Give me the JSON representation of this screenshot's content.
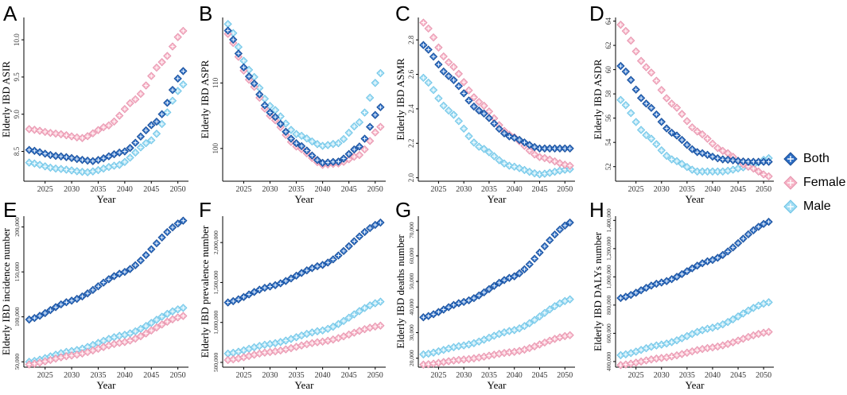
{
  "colors": {
    "both": "#2e6fc4",
    "female": "#f7b6c8",
    "male": "#9fdcf3",
    "axis": "#000000"
  },
  "legend": [
    {
      "key": "both",
      "label": "Both"
    },
    {
      "key": "female",
      "label": "Female"
    },
    {
      "key": "male",
      "label": "Male"
    }
  ],
  "chart_data": [
    {
      "type": "scatter",
      "panel": "A",
      "title": "",
      "xlabel": "Year",
      "ylabel": "Elderly IBD ASIR",
      "x_range": [
        2022,
        2051
      ],
      "xlim": [
        2021,
        2052
      ],
      "xticks": [
        2025,
        2030,
        2035,
        2040,
        2045,
        2050
      ],
      "xtick_labels": [
        "2025",
        "2030",
        "2035",
        "2040",
        "2045",
        "2050"
      ],
      "ylim": [
        8.1,
        10.3
      ],
      "yticks": [
        8.5,
        9.0,
        9.5,
        10.0
      ],
      "ytick_labels": [
        "8.5",
        "9.0",
        "9.5",
        "10.0"
      ],
      "series": [
        {
          "name": "Both",
          "key": "both",
          "anchors": [
            [
              2022,
              8.52
            ],
            [
              2027,
              8.44
            ],
            [
              2034,
              8.37
            ],
            [
              2040,
              8.5
            ],
            [
              2046,
              8.9
            ],
            [
              2051,
              9.58
            ]
          ]
        },
        {
          "name": "Female",
          "key": "female",
          "anchors": [
            [
              2022,
              8.8
            ],
            [
              2027,
              8.74
            ],
            [
              2032,
              8.68
            ],
            [
              2037,
              8.85
            ],
            [
              2042,
              9.2
            ],
            [
              2047,
              9.7
            ],
            [
              2051,
              10.12
            ]
          ]
        },
        {
          "name": "Male",
          "key": "male",
          "anchors": [
            [
              2022,
              8.35
            ],
            [
              2027,
              8.27
            ],
            [
              2033,
              8.22
            ],
            [
              2039,
              8.32
            ],
            [
              2045,
              8.65
            ],
            [
              2051,
              9.4
            ]
          ]
        }
      ]
    },
    {
      "type": "scatter",
      "panel": "B",
      "title": "",
      "xlabel": "Year",
      "ylabel": "Elderly IBD ASPR",
      "x_range": [
        2022,
        2051
      ],
      "xlim": [
        2021,
        2052
      ],
      "xticks": [
        2025,
        2030,
        2035,
        2040,
        2045,
        2050
      ],
      "xtick_labels": [
        "2025",
        "2030",
        "2035",
        "2040",
        "2045",
        "2050"
      ],
      "ylim": [
        95,
        120
      ],
      "yticks": [
        100,
        110
      ],
      "ytick_labels": [
        "100",
        "110"
      ],
      "series": [
        {
          "name": "Both",
          "key": "both",
          "anchors": [
            [
              2022,
              118.0
            ],
            [
              2026,
              111.0
            ],
            [
              2030,
              105.5
            ],
            [
              2035,
              100.8
            ],
            [
              2040,
              97.8
            ],
            [
              2043,
              98.0
            ],
            [
              2047,
              100.3
            ],
            [
              2051,
              106.3
            ]
          ]
        },
        {
          "name": "Female",
          "key": "female",
          "anchors": [
            [
              2022,
              117.5
            ],
            [
              2026,
              110.5
            ],
            [
              2030,
              105.0
            ],
            [
              2035,
              100.3
            ],
            [
              2040,
              97.5
            ],
            [
              2043,
              97.7
            ],
            [
              2047,
              99.0
            ],
            [
              2051,
              103.3
            ]
          ]
        },
        {
          "name": "Male",
          "key": "male",
          "anchors": [
            [
              2022,
              119.0
            ],
            [
              2026,
              112.0
            ],
            [
              2030,
              106.5
            ],
            [
              2035,
              102.2
            ],
            [
              2040,
              100.4
            ],
            [
              2043,
              100.8
            ],
            [
              2047,
              104.0
            ],
            [
              2051,
              111.5
            ]
          ]
        }
      ]
    },
    {
      "type": "scatter",
      "panel": "C",
      "title": "",
      "xlabel": "Year",
      "ylabel": "Elderly IBD ASMR",
      "x_range": [
        2022,
        2051
      ],
      "xlim": [
        2021,
        2052
      ],
      "xticks": [
        2025,
        2030,
        2035,
        2040,
        2045,
        2050
      ],
      "xtick_labels": [
        "2025",
        "2030",
        "2035",
        "2040",
        "2045",
        "2050"
      ],
      "ylim": [
        1.98,
        2.93
      ],
      "yticks": [
        2.0,
        2.2,
        2.4,
        2.6,
        2.8
      ],
      "ytick_labels": [
        "2.0",
        "2.2",
        "2.4",
        "2.6",
        "2.8"
      ],
      "series": [
        {
          "name": "Both",
          "key": "both",
          "anchors": [
            [
              2022,
              2.77
            ],
            [
              2027,
              2.59
            ],
            [
              2033,
              2.39
            ],
            [
              2039,
              2.24
            ],
            [
              2045,
              2.17
            ],
            [
              2051,
              2.17
            ]
          ]
        },
        {
          "name": "Female",
          "key": "female",
          "anchors": [
            [
              2022,
              2.9
            ],
            [
              2027,
              2.67
            ],
            [
              2033,
              2.44
            ],
            [
              2039,
              2.25
            ],
            [
              2045,
              2.12
            ],
            [
              2051,
              2.07
            ]
          ]
        },
        {
          "name": "Male",
          "key": "male",
          "anchors": [
            [
              2022,
              2.58
            ],
            [
              2027,
              2.39
            ],
            [
              2033,
              2.18
            ],
            [
              2039,
              2.07
            ],
            [
              2045,
              2.02
            ],
            [
              2051,
              2.05
            ]
          ]
        }
      ]
    },
    {
      "type": "scatter",
      "panel": "D",
      "title": "",
      "xlabel": "Year",
      "ylabel": "Elderly IBD ASDR",
      "x_range": [
        2022,
        2051
      ],
      "xlim": [
        2021,
        2052
      ],
      "xticks": [
        2025,
        2030,
        2035,
        2040,
        2045,
        2050
      ],
      "xtick_labels": [
        "2025",
        "2030",
        "2035",
        "2040",
        "2045",
        "2050"
      ],
      "ylim": [
        50.8,
        64.3
      ],
      "yticks": [
        52,
        54,
        56,
        58,
        60,
        62,
        64
      ],
      "ytick_labels": [
        "52",
        "54",
        "56",
        "58",
        "60",
        "62",
        "64"
      ],
      "series": [
        {
          "name": "Both",
          "key": "both",
          "anchors": [
            [
              2022,
              60.3
            ],
            [
              2027,
              57.2
            ],
            [
              2032,
              54.8
            ],
            [
              2037,
              53.2
            ],
            [
              2042,
              52.6
            ],
            [
              2047,
              52.4
            ],
            [
              2051,
              52.4
            ]
          ]
        },
        {
          "name": "Female",
          "key": "female",
          "anchors": [
            [
              2022,
              63.7
            ],
            [
              2027,
              60.2
            ],
            [
              2032,
              57.2
            ],
            [
              2037,
              54.9
            ],
            [
              2042,
              53.3
            ],
            [
              2047,
              52.0
            ],
            [
              2051,
              51.2
            ]
          ]
        },
        {
          "name": "Male",
          "key": "male",
          "anchors": [
            [
              2022,
              57.5
            ],
            [
              2027,
              54.6
            ],
            [
              2032,
              52.6
            ],
            [
              2037,
              51.6
            ],
            [
              2042,
              51.6
            ],
            [
              2047,
              52.0
            ],
            [
              2051,
              52.7
            ]
          ]
        }
      ]
    },
    {
      "type": "scatter",
      "panel": "E",
      "title": "",
      "xlabel": "Year",
      "ylabel": "Elderly IBD incidence number",
      "x_range": [
        2022,
        2051
      ],
      "xlim": [
        2021,
        2052
      ],
      "xticks": [
        2025,
        2030,
        2035,
        2040,
        2045,
        2050
      ],
      "xtick_labels": [
        "2025",
        "2030",
        "2035",
        "2040",
        "2045",
        "2050"
      ],
      "ylim": [
        44000,
        212000
      ],
      "yticks": [
        50000,
        100000,
        150000,
        200000
      ],
      "ytick_labels": [
        "50,000",
        "100,000",
        "150,000",
        "200,000"
      ],
      "series": [
        {
          "name": "Both",
          "key": "both",
          "anchors": [
            [
              2022,
              97000
            ],
            [
              2030,
              118000
            ],
            [
              2040,
              150000
            ],
            [
              2051,
              207000
            ]
          ]
        },
        {
          "name": "Female",
          "key": "female",
          "anchors": [
            [
              2022,
              47000
            ],
            [
              2030,
              57000
            ],
            [
              2040,
              72000
            ],
            [
              2051,
              101000
            ]
          ]
        },
        {
          "name": "Male",
          "key": "male",
          "anchors": [
            [
              2022,
              50000
            ],
            [
              2030,
              62000
            ],
            [
              2040,
              80000
            ],
            [
              2051,
              110000
            ]
          ]
        }
      ]
    },
    {
      "type": "scatter",
      "panel": "F",
      "title": "",
      "xlabel": "Year",
      "ylabel": "Elderly IBD prevalence number",
      "x_range": [
        2022,
        2051
      ],
      "xlim": [
        2021,
        2052
      ],
      "xticks": [
        2025,
        2030,
        2035,
        2040,
        2045,
        2050
      ],
      "xtick_labels": [
        "2025",
        "2030",
        "2035",
        "2040",
        "2045",
        "2050"
      ],
      "ylim": [
        440000,
        2330000
      ],
      "yticks": [
        500000,
        1000000,
        1500000,
        2000000
      ],
      "ytick_labels": [
        "500,000",
        "1,000,000",
        "1,500,000",
        "2,000,000"
      ],
      "series": [
        {
          "name": "Both",
          "key": "both",
          "anchors": [
            [
              2022,
              1250000
            ],
            [
              2030,
              1450000
            ],
            [
              2040,
              1720000
            ],
            [
              2051,
              2250000
            ]
          ]
        },
        {
          "name": "Female",
          "key": "female",
          "anchors": [
            [
              2022,
              530000
            ],
            [
              2030,
              630000
            ],
            [
              2040,
              760000
            ],
            [
              2051,
              960000
            ]
          ]
        },
        {
          "name": "Male",
          "key": "male",
          "anchors": [
            [
              2022,
              610000
            ],
            [
              2030,
              730000
            ],
            [
              2040,
              900000
            ],
            [
              2051,
              1260000
            ]
          ]
        }
      ]
    },
    {
      "type": "scatter",
      "panel": "G",
      "title": "",
      "xlabel": "Year",
      "ylabel": "Elderly IBD deaths number",
      "x_range": [
        2022,
        2051
      ],
      "xlim": [
        2021,
        2052
      ],
      "xticks": [
        2025,
        2030,
        2035,
        2040,
        2045,
        2050
      ],
      "xtick_labels": [
        "2025",
        "2030",
        "2035",
        "2040",
        "2045",
        "2050"
      ],
      "ylim": [
        16500,
        75500
      ],
      "yticks": [
        20000,
        30000,
        40000,
        50000,
        60000,
        70000
      ],
      "ytick_labels": [
        "20,000",
        "30,000",
        "40,000",
        "50,000",
        "60,000",
        "70,000"
      ],
      "series": [
        {
          "name": "Both",
          "key": "both",
          "anchors": [
            [
              2022,
              36000
            ],
            [
              2030,
              42000
            ],
            [
              2040,
              52000
            ],
            [
              2051,
              73000
            ]
          ]
        },
        {
          "name": "Female",
          "key": "female",
          "anchors": [
            [
              2022,
              17500
            ],
            [
              2030,
              19500
            ],
            [
              2040,
              22500
            ],
            [
              2051,
              29000
            ]
          ]
        },
        {
          "name": "Male",
          "key": "male",
          "anchors": [
            [
              2022,
              21500
            ],
            [
              2030,
              25000
            ],
            [
              2040,
              31000
            ],
            [
              2051,
              43000
            ]
          ]
        }
      ]
    },
    {
      "type": "scatter",
      "panel": "H",
      "title": "",
      "xlabel": "Year",
      "ylabel": "Elderly IBD DALYs number",
      "x_range": [
        2022,
        2051
      ],
      "xlim": [
        2021,
        2052
      ],
      "xticks": [
        2025,
        2030,
        2035,
        2040,
        2045,
        2050
      ],
      "xtick_labels": [
        "2025",
        "2030",
        "2035",
        "2040",
        "2045",
        "2050"
      ],
      "ylim": [
        360000,
        1430000
      ],
      "yticks": [
        400000,
        600000,
        800000,
        1000000,
        1200000,
        1400000
      ],
      "ytick_labels": [
        "400,000",
        "600,000",
        "800,000",
        "1,000,000",
        "1,200,000",
        "1,400,000"
      ],
      "series": [
        {
          "name": "Both",
          "key": "both",
          "anchors": [
            [
              2022,
              850000
            ],
            [
              2030,
              960000
            ],
            [
              2040,
              1120000
            ],
            [
              2051,
              1390000
            ]
          ]
        },
        {
          "name": "Female",
          "key": "female",
          "anchors": [
            [
              2022,
              375000
            ],
            [
              2030,
              425000
            ],
            [
              2040,
              500000
            ],
            [
              2051,
              610000
            ]
          ]
        },
        {
          "name": "Male",
          "key": "male",
          "anchors": [
            [
              2022,
              445000
            ],
            [
              2030,
              520000
            ],
            [
              2040,
              640000
            ],
            [
              2051,
              820000
            ]
          ]
        }
      ]
    }
  ]
}
